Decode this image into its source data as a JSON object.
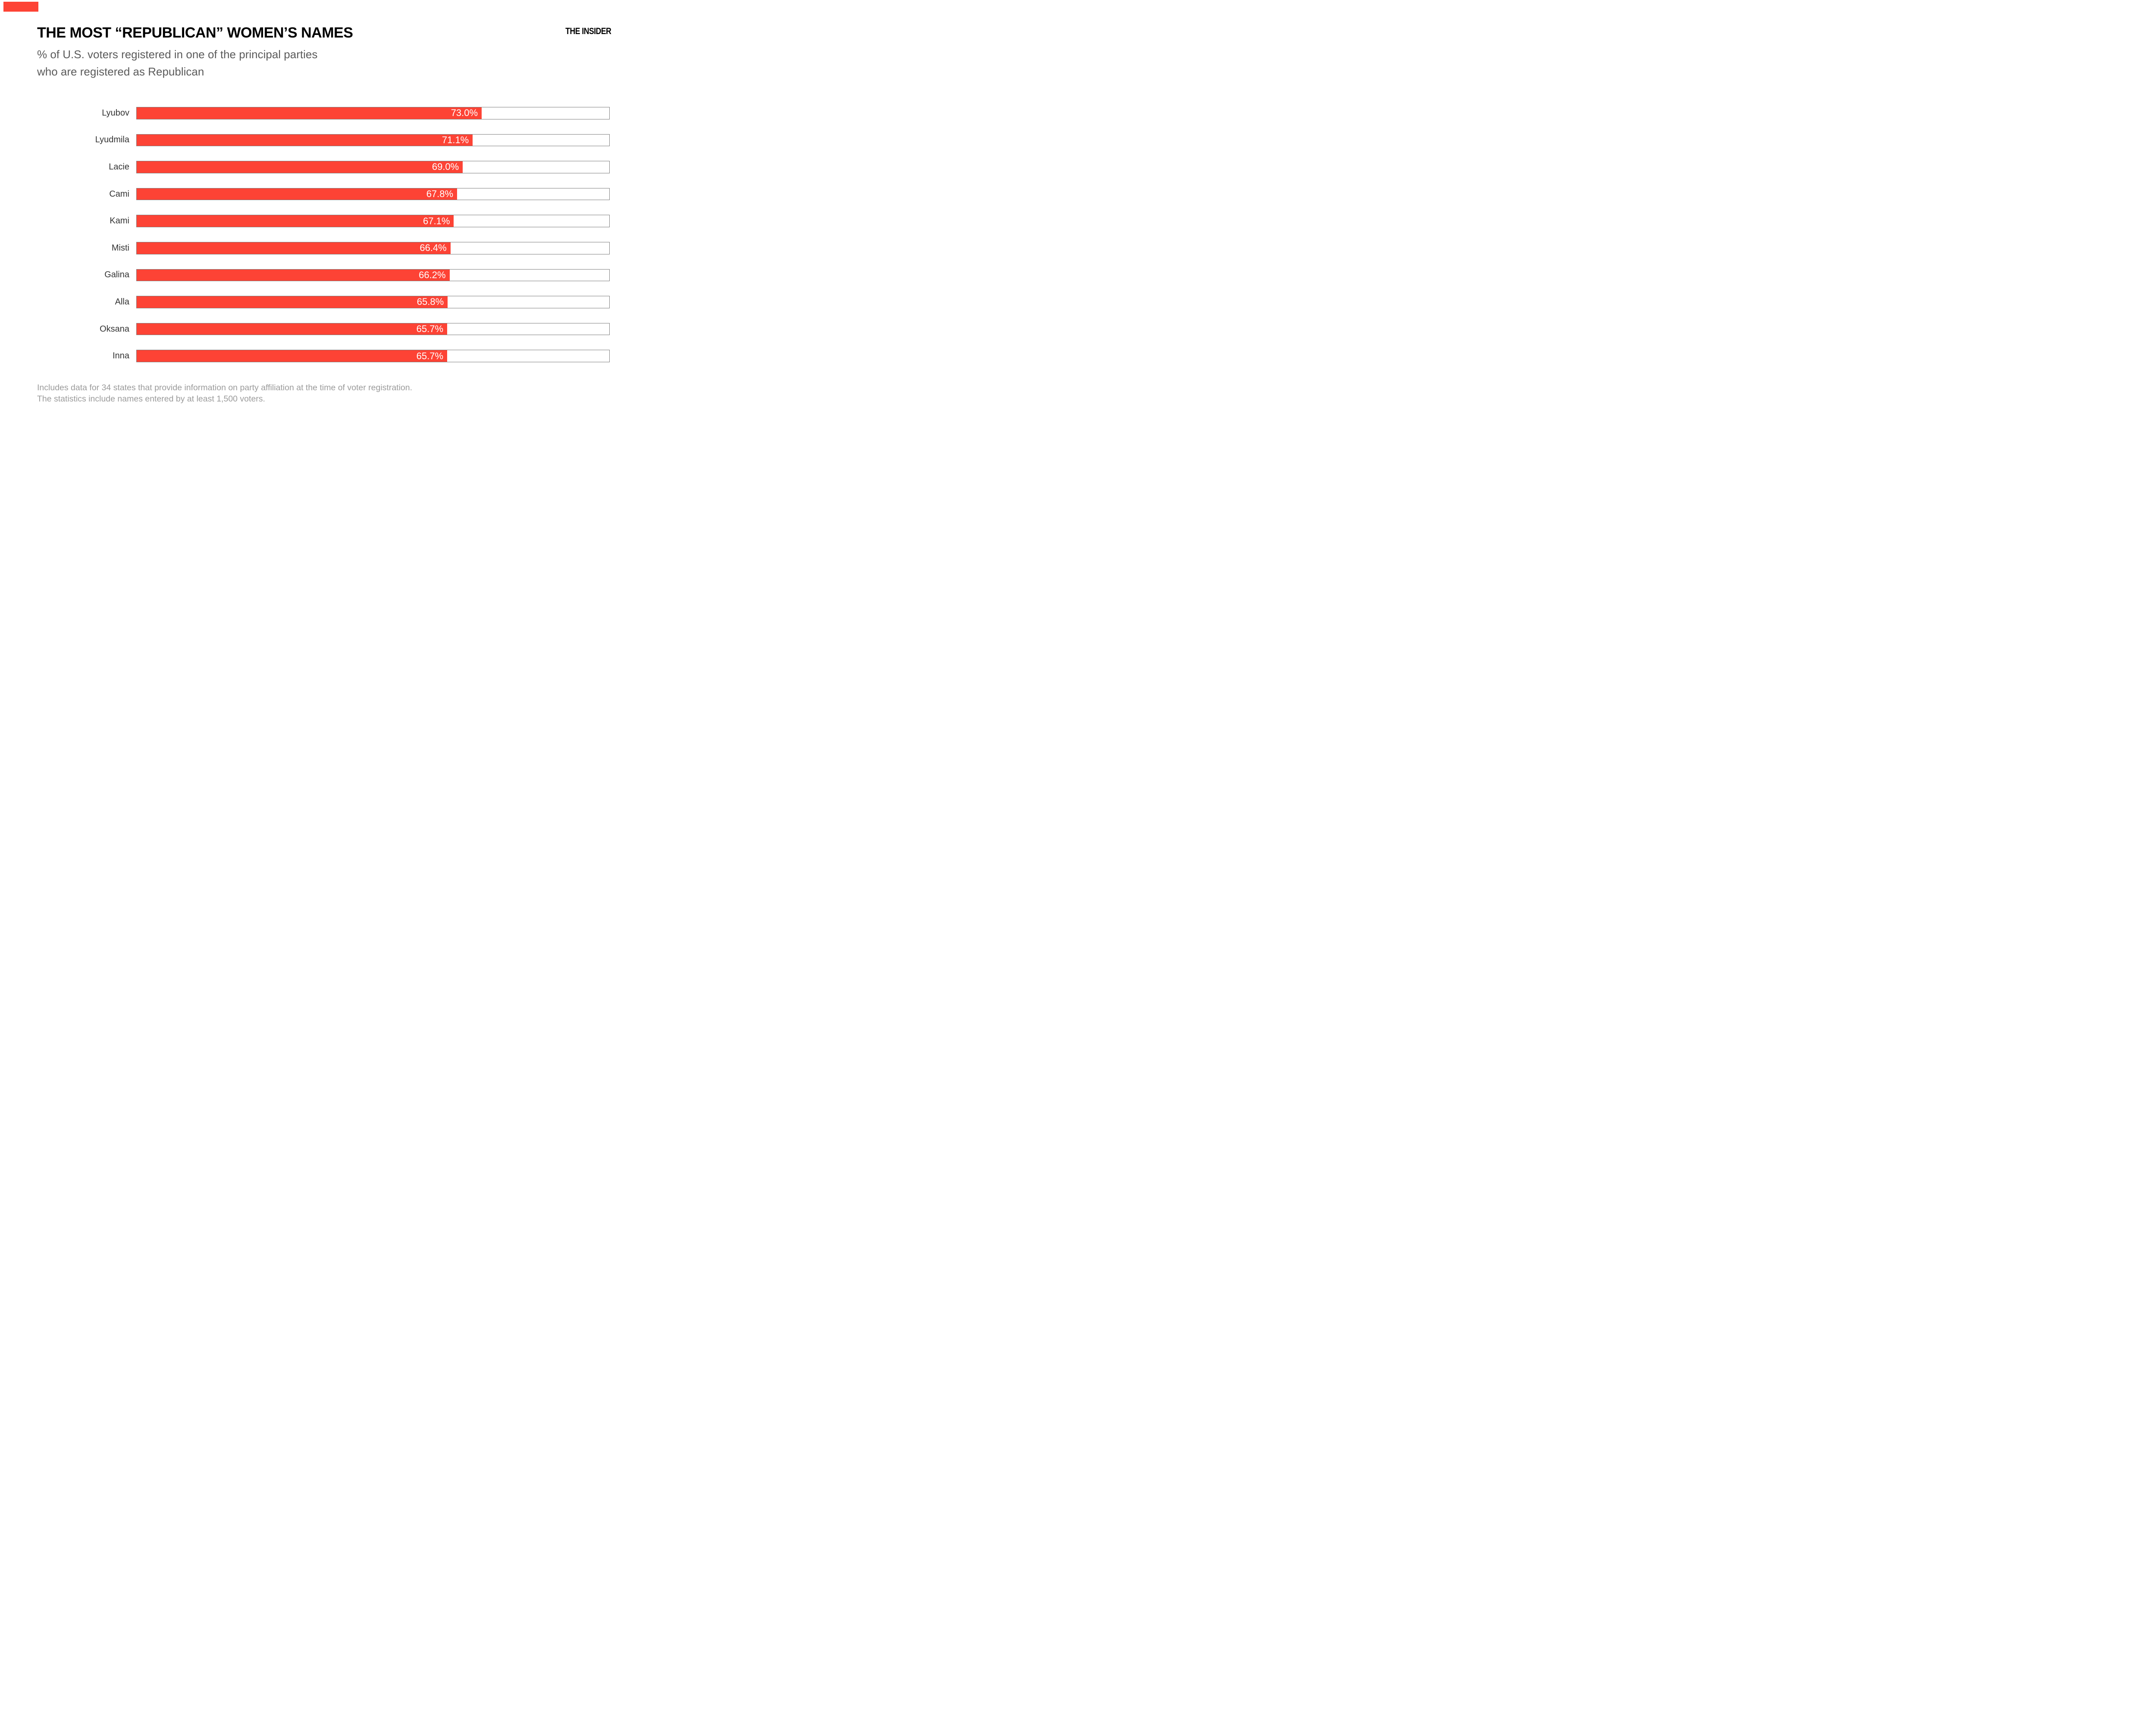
{
  "brand": {
    "logo_text": "THE INSIDER",
    "red_mark_color": "#fd4335"
  },
  "header": {
    "title": "THE MOST “REPUBLICAN” WOMEN’S NAMES",
    "subtitle_line1": "% of U.S. voters registered in one of the principal parties",
    "subtitle_line2": "who are registered as Republican"
  },
  "chart_data": {
    "type": "bar",
    "orientation": "horizontal",
    "title": "THE MOST “REPUBLICAN” WOMEN’S NAMES",
    "subtitle": "% of U.S. voters registered in one of the principal parties who are registered as Republican",
    "categories": [
      "Lyubov",
      "Lyudmila",
      "Lacie",
      "Cami",
      "Kami",
      "Misti",
      "Galina",
      "Alla",
      "Oksana",
      "Inna"
    ],
    "values": [
      73.0,
      71.1,
      69.0,
      67.8,
      67.1,
      66.4,
      66.2,
      65.8,
      65.7,
      65.7
    ],
    "value_labels": [
      "73.0%",
      "71.1%",
      "69.0%",
      "67.8%",
      "67.1%",
      "66.4%",
      "66.2%",
      "65.8%",
      "65.7%",
      "65.7%"
    ],
    "unit": "%",
    "xlim": [
      0,
      100
    ],
    "grid": false,
    "legend": false,
    "bar_color": "#fd4335",
    "track_fill_color": "#ffffff",
    "track_border_color": "#7f7f7f",
    "value_label_color": "#ffffff",
    "category_label_color": "#333333"
  },
  "footer": {
    "line1": "Includes data for 34 states that provide information on party affiliation at the time of voter registration.",
    "line2": "The statistics include names entered by at least 1,500 voters."
  }
}
